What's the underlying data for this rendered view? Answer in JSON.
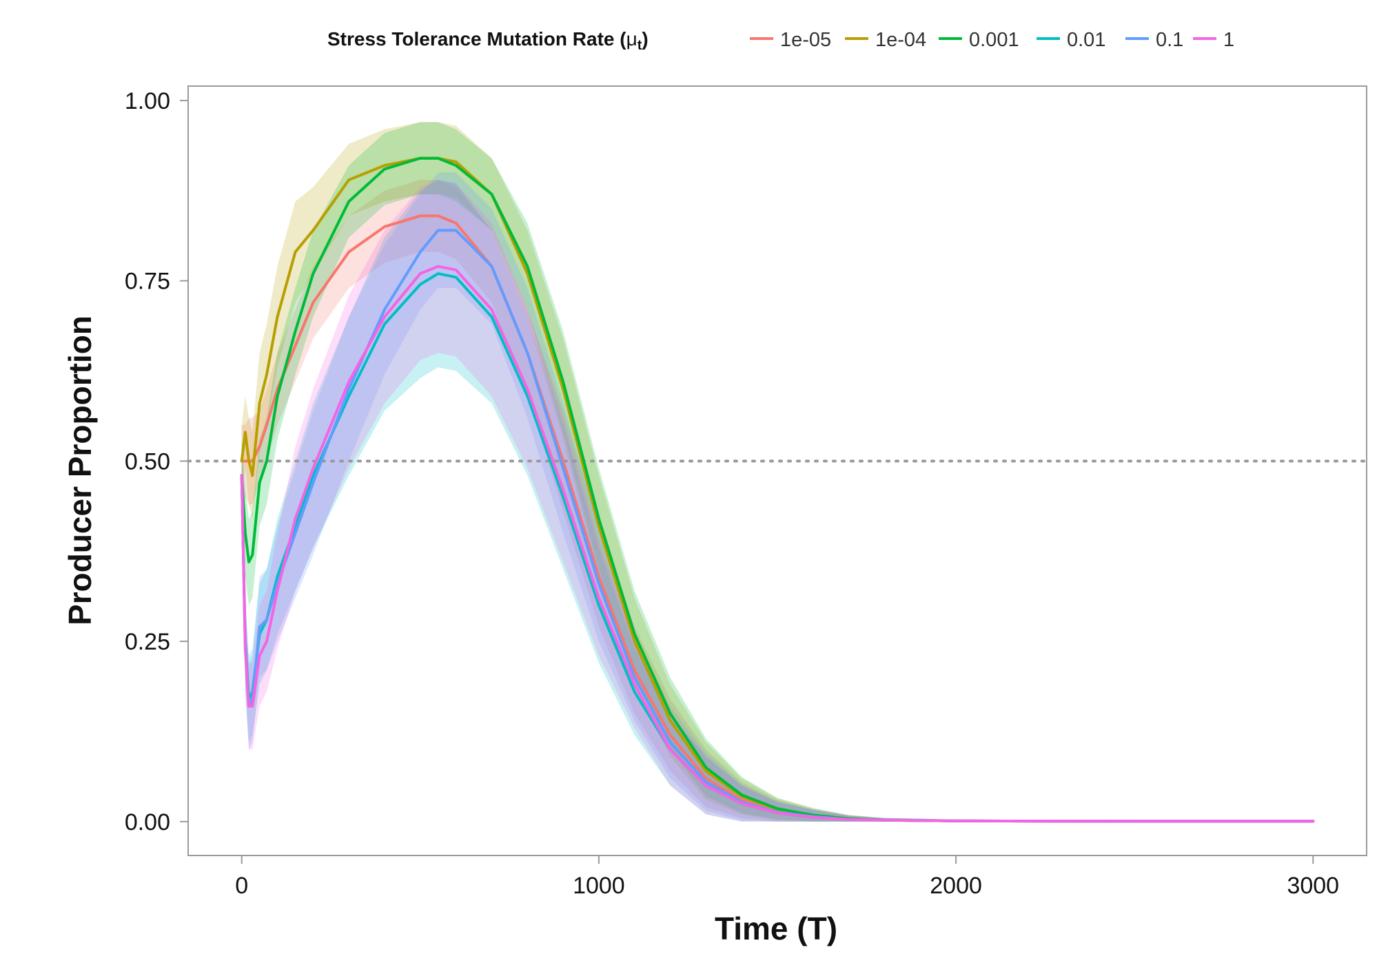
{
  "chart_data": {
    "type": "line",
    "title": "",
    "xlabel": "Time (T)",
    "ylabel": "Producer Proportion",
    "xlim": [
      -150,
      3150
    ],
    "ylim": [
      -0.047,
      1.02
    ],
    "xticks": [
      0,
      1000,
      2000,
      3000
    ],
    "xtick_labels": [
      "0",
      "1000",
      "2000",
      "3000"
    ],
    "yticks": [
      0,
      0.25,
      0.5,
      0.75,
      1
    ],
    "ytick_labels": [
      "0.00",
      "0.25",
      "0.50",
      "0.75",
      "1.00"
    ],
    "reference_line": {
      "y": 0.5,
      "style": "dotted",
      "color": "#999999"
    },
    "grid": false,
    "legend": {
      "position": "top",
      "title_main": "Stress Tolerance Mutation Rate (",
      "title_symbol": "μ",
      "title_subscript": "t",
      "title_close": ")"
    },
    "series": [
      {
        "name": "1e-05",
        "color": "#F8766D",
        "x": [
          0,
          10,
          20,
          30,
          50,
          70,
          100,
          150,
          200,
          300,
          400,
          500,
          550,
          600,
          700,
          800,
          900,
          1000,
          1100,
          1200,
          1300,
          1400,
          1500,
          1600,
          1700,
          1800,
          2000,
          2500,
          3000
        ],
        "y": [
          0.5,
          0.5,
          0.5,
          0.5,
          0.52,
          0.55,
          0.6,
          0.66,
          0.72,
          0.79,
          0.825,
          0.84,
          0.84,
          0.83,
          0.77,
          0.65,
          0.5,
          0.34,
          0.21,
          0.12,
          0.06,
          0.03,
          0.015,
          0.007,
          0.004,
          0.002,
          0.001,
          0.0005,
          0.0005
        ],
        "band": [
          0.05,
          0.05,
          0.06,
          0.06,
          0.05,
          0.05,
          0.05,
          0.05,
          0.05,
          0.05,
          0.05,
          0.05,
          0.05,
          0.05,
          0.05,
          0.06,
          0.07,
          0.07,
          0.06,
          0.05,
          0.04,
          0.025,
          0.015,
          0.01,
          0.005,
          0.003,
          0.002,
          0.001,
          0.001
        ]
      },
      {
        "name": "1e-04",
        "color": "#B79F00",
        "x": [
          0,
          10,
          20,
          30,
          50,
          70,
          100,
          150,
          200,
          300,
          400,
          500,
          550,
          600,
          700,
          800,
          900,
          1000,
          1100,
          1200,
          1300,
          1400,
          1500,
          1600,
          1700,
          1800,
          2000,
          2500,
          3000
        ],
        "y": [
          0.5,
          0.54,
          0.5,
          0.48,
          0.58,
          0.62,
          0.7,
          0.79,
          0.82,
          0.89,
          0.91,
          0.92,
          0.92,
          0.915,
          0.87,
          0.76,
          0.6,
          0.41,
          0.25,
          0.14,
          0.07,
          0.035,
          0.017,
          0.008,
          0.004,
          0.002,
          0.001,
          0.0005,
          0.0005
        ],
        "band": [
          0.05,
          0.05,
          0.06,
          0.06,
          0.07,
          0.07,
          0.07,
          0.07,
          0.06,
          0.05,
          0.05,
          0.05,
          0.05,
          0.05,
          0.05,
          0.06,
          0.07,
          0.07,
          0.06,
          0.05,
          0.04,
          0.025,
          0.015,
          0.01,
          0.005,
          0.003,
          0.002,
          0.001,
          0.001
        ]
      },
      {
        "name": "0.001",
        "color": "#00BA38",
        "x": [
          0,
          10,
          20,
          30,
          50,
          70,
          100,
          150,
          200,
          300,
          400,
          500,
          550,
          600,
          700,
          800,
          900,
          1000,
          1100,
          1200,
          1300,
          1400,
          1500,
          1600,
          1700,
          1800,
          2000,
          2500,
          3000
        ],
        "y": [
          0.48,
          0.4,
          0.36,
          0.37,
          0.47,
          0.5,
          0.59,
          0.68,
          0.76,
          0.86,
          0.905,
          0.92,
          0.92,
          0.91,
          0.87,
          0.77,
          0.61,
          0.42,
          0.26,
          0.15,
          0.075,
          0.037,
          0.018,
          0.009,
          0.004,
          0.002,
          0.001,
          0.0005,
          0.0005
        ],
        "band": [
          0.05,
          0.06,
          0.06,
          0.06,
          0.06,
          0.06,
          0.06,
          0.06,
          0.06,
          0.05,
          0.05,
          0.05,
          0.05,
          0.05,
          0.05,
          0.06,
          0.07,
          0.07,
          0.06,
          0.05,
          0.04,
          0.025,
          0.015,
          0.01,
          0.005,
          0.003,
          0.002,
          0.001,
          0.001
        ]
      },
      {
        "name": "0.01",
        "color": "#00BFC4",
        "x": [
          0,
          10,
          20,
          30,
          50,
          70,
          100,
          150,
          200,
          300,
          400,
          500,
          550,
          600,
          700,
          800,
          900,
          1000,
          1100,
          1200,
          1300,
          1400,
          1500,
          1600,
          1700,
          1800,
          2000,
          2500,
          3000
        ],
        "y": [
          0.48,
          0.25,
          0.17,
          0.18,
          0.26,
          0.28,
          0.34,
          0.41,
          0.48,
          0.59,
          0.69,
          0.745,
          0.76,
          0.755,
          0.7,
          0.59,
          0.45,
          0.3,
          0.18,
          0.1,
          0.05,
          0.025,
          0.012,
          0.006,
          0.003,
          0.002,
          0.001,
          0.0005,
          0.0005
        ],
        "band": [
          0.05,
          0.06,
          0.06,
          0.06,
          0.07,
          0.07,
          0.08,
          0.09,
          0.1,
          0.11,
          0.12,
          0.13,
          0.13,
          0.13,
          0.12,
          0.11,
          0.1,
          0.08,
          0.06,
          0.05,
          0.04,
          0.025,
          0.015,
          0.01,
          0.005,
          0.003,
          0.002,
          0.001,
          0.001
        ]
      },
      {
        "name": "0.1",
        "color": "#619CFF",
        "x": [
          0,
          10,
          20,
          30,
          50,
          70,
          100,
          150,
          200,
          300,
          400,
          500,
          550,
          600,
          700,
          800,
          900,
          1000,
          1100,
          1200,
          1300,
          1400,
          1500,
          1600,
          1700,
          1800,
          2000,
          2500,
          3000
        ],
        "y": [
          0.48,
          0.24,
          0.16,
          0.17,
          0.27,
          0.28,
          0.33,
          0.4,
          0.47,
          0.6,
          0.71,
          0.79,
          0.82,
          0.82,
          0.77,
          0.65,
          0.49,
          0.33,
          0.2,
          0.11,
          0.055,
          0.027,
          0.013,
          0.007,
          0.003,
          0.002,
          0.001,
          0.0005,
          0.0005
        ],
        "band": [
          0.05,
          0.06,
          0.06,
          0.06,
          0.07,
          0.07,
          0.08,
          0.09,
          0.1,
          0.1,
          0.09,
          0.08,
          0.08,
          0.08,
          0.08,
          0.09,
          0.09,
          0.08,
          0.06,
          0.05,
          0.04,
          0.025,
          0.015,
          0.01,
          0.005,
          0.003,
          0.002,
          0.001,
          0.001
        ]
      },
      {
        "name": "1",
        "color": "#F564E3",
        "x": [
          0,
          10,
          20,
          30,
          50,
          70,
          100,
          150,
          200,
          300,
          400,
          500,
          550,
          600,
          700,
          800,
          900,
          1000,
          1100,
          1200,
          1300,
          1400,
          1500,
          1600,
          1700,
          1800,
          2000,
          2500,
          3000
        ],
        "y": [
          0.48,
          0.24,
          0.16,
          0.16,
          0.23,
          0.25,
          0.32,
          0.42,
          0.49,
          0.61,
          0.7,
          0.76,
          0.77,
          0.765,
          0.71,
          0.6,
          0.46,
          0.31,
          0.19,
          0.1,
          0.05,
          0.025,
          0.012,
          0.006,
          0.003,
          0.002,
          0.001,
          0.0005,
          0.0005
        ],
        "band": [
          0.05,
          0.06,
          0.06,
          0.06,
          0.07,
          0.07,
          0.08,
          0.1,
          0.11,
          0.12,
          0.12,
          0.12,
          0.12,
          0.12,
          0.12,
          0.11,
          0.1,
          0.08,
          0.06,
          0.05,
          0.04,
          0.025,
          0.015,
          0.01,
          0.005,
          0.003,
          0.002,
          0.001,
          0.001
        ]
      }
    ]
  }
}
